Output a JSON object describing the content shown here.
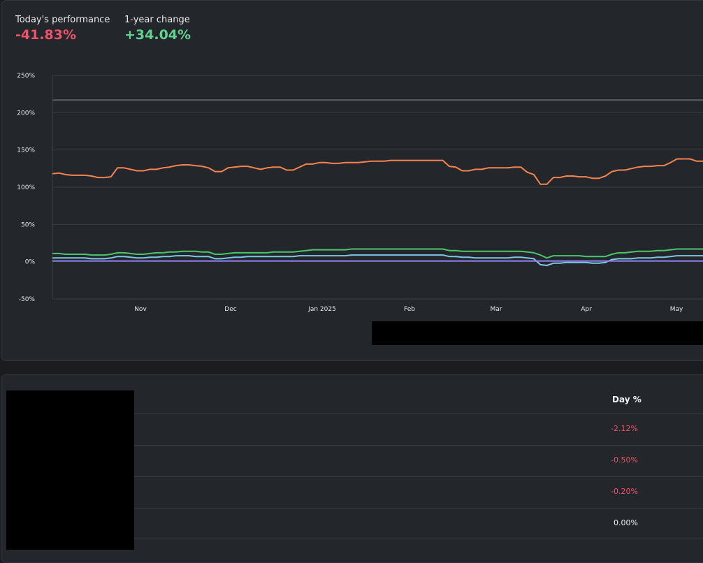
{
  "performance": {
    "today_label": "Today's performance",
    "today_value": "-41.83%",
    "year_label": "1-year change",
    "year_value": "+34.04%"
  },
  "colors": {
    "negative": "#f0536a",
    "positive": "#5fd48e",
    "grid": "#3a3d43",
    "reference_line": "#5a5d63"
  },
  "chart_data": {
    "type": "line",
    "y_ticks": [
      "250%",
      "200%",
      "150%",
      "100%",
      "50%",
      "0%",
      "-50%"
    ],
    "ylim": [
      -50,
      250
    ],
    "x_ticks": [
      "Nov",
      "Dec",
      "Jan 2025",
      "Feb",
      "Mar",
      "Apr",
      "May"
    ],
    "reference_line_value": 217,
    "grid": true,
    "series": [
      {
        "color": "#f5834f",
        "values": [
          118,
          119,
          117,
          116,
          116,
          116,
          115,
          113,
          113,
          114,
          126,
          126,
          124,
          122,
          122,
          124,
          124,
          126,
          127,
          129,
          130,
          130,
          129,
          128,
          126,
          121,
          121,
          126,
          127,
          128,
          128,
          126,
          124,
          126,
          127,
          127,
          123,
          123,
          127,
          131,
          131,
          133,
          133,
          132,
          132,
          133,
          133,
          133,
          134,
          135,
          135,
          135,
          136,
          136,
          136,
          136,
          136,
          136,
          136,
          136,
          136,
          128,
          127,
          122,
          122,
          124,
          124,
          126,
          126,
          126,
          126,
          127,
          127,
          120,
          117,
          104,
          104,
          113,
          113,
          115,
          115,
          114,
          114,
          112,
          112,
          115,
          121,
          123,
          123,
          125,
          127,
          128,
          128,
          129,
          129,
          133,
          138,
          138,
          138,
          135,
          135
        ]
      },
      {
        "color": "#4bc76b",
        "values": [
          11,
          11,
          10,
          10,
          10,
          10,
          9,
          9,
          9,
          10,
          12,
          12,
          11,
          10,
          10,
          11,
          12,
          12,
          13,
          13,
          14,
          14,
          14,
          13,
          13,
          10,
          10,
          11,
          12,
          12,
          12,
          12,
          12,
          12,
          13,
          13,
          13,
          13,
          14,
          15,
          16,
          16,
          16,
          16,
          16,
          16,
          17,
          17,
          17,
          17,
          17,
          17,
          17,
          17,
          17,
          17,
          17,
          17,
          17,
          17,
          17,
          15,
          15,
          14,
          14,
          14,
          14,
          14,
          14,
          14,
          14,
          14,
          14,
          13,
          12,
          9,
          5,
          8,
          8,
          8,
          8,
          8,
          7,
          7,
          7,
          7,
          10,
          12,
          12,
          13,
          14,
          14,
          14,
          15,
          15,
          16,
          17,
          17,
          17,
          17,
          17
        ]
      },
      {
        "color": "#7ec6e6",
        "values": [
          5,
          5,
          5,
          5,
          5,
          5,
          4,
          4,
          4,
          5,
          7,
          7,
          6,
          5,
          5,
          6,
          6,
          7,
          7,
          8,
          8,
          8,
          7,
          7,
          7,
          4,
          4,
          5,
          6,
          6,
          7,
          7,
          7,
          7,
          7,
          7,
          7,
          7,
          8,
          8,
          8,
          8,
          8,
          8,
          8,
          8,
          9,
          9,
          9,
          9,
          9,
          9,
          9,
          9,
          9,
          9,
          9,
          9,
          9,
          9,
          9,
          7,
          7,
          6,
          6,
          5,
          5,
          5,
          5,
          5,
          5,
          6,
          6,
          5,
          4,
          -4,
          -5,
          -2,
          -2,
          -1,
          -1,
          -1,
          -1,
          -2,
          -2,
          -1,
          3,
          4,
          4,
          4,
          5,
          5,
          5,
          6,
          6,
          7,
          8,
          8,
          8,
          8,
          8
        ]
      },
      {
        "color": "#8f7ff0",
        "values": [
          1,
          1,
          1,
          1,
          1,
          1,
          1,
          1,
          1,
          1,
          1,
          1,
          1,
          1,
          1,
          1,
          1,
          1,
          1,
          1,
          1,
          1,
          1,
          1,
          1,
          1,
          1,
          1,
          1,
          1,
          1,
          1,
          1,
          1,
          1,
          1,
          1,
          1,
          1,
          1,
          1,
          1,
          1,
          1,
          1,
          1,
          1,
          1,
          1,
          1,
          1,
          1,
          1,
          1,
          1,
          1,
          1,
          1,
          1,
          1,
          1,
          1,
          1,
          1,
          1,
          1,
          1,
          1,
          1,
          1,
          1,
          1,
          1,
          1,
          1,
          1,
          1,
          1,
          1,
          1,
          1,
          1,
          1,
          1,
          1,
          1,
          1,
          1,
          1,
          1,
          1,
          1,
          1,
          1,
          1,
          1,
          1,
          1,
          1,
          1,
          1
        ]
      }
    ]
  },
  "table": {
    "header": "Day %",
    "rows": [
      {
        "day_pct": "-2.12%",
        "tone": "neg"
      },
      {
        "day_pct": "-0.50%",
        "tone": "neg"
      },
      {
        "day_pct": "-0.20%",
        "tone": "neg"
      },
      {
        "day_pct": "0.00%",
        "tone": "neutral"
      }
    ]
  }
}
